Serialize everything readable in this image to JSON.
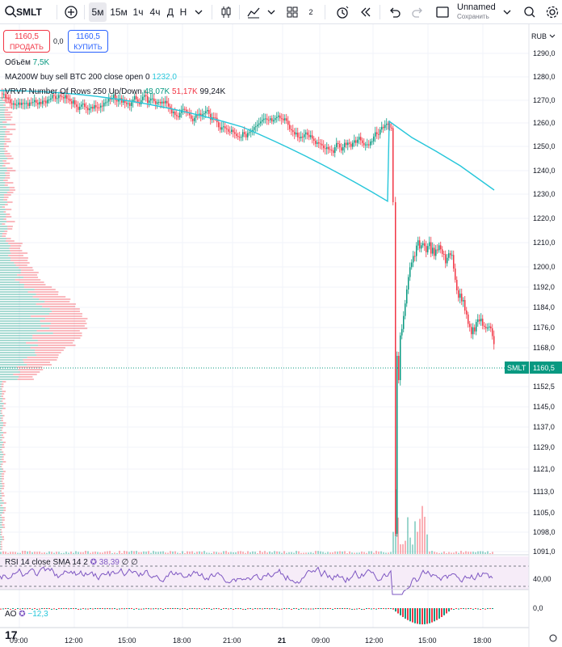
{
  "toolbar": {
    "symbol": "SMLT",
    "intervals": [
      "5м",
      "15м",
      "1ч",
      "4ч",
      "Д",
      "Н"
    ],
    "selected_interval": "5м",
    "layout_count": "2",
    "layout_name": "Unnamed",
    "layout_status": "Сохранить"
  },
  "trade": {
    "sell_price": "1160,5",
    "sell_label": "ПРОДАТЬ",
    "spread": "0,0",
    "buy_price": "1160,5",
    "buy_label": "КУПИТЬ"
  },
  "legends": {
    "volume_label": "Объём",
    "volume_value": "7,5K",
    "ma_label": "MA200W buy sell BTC 200 close open 0",
    "ma_value": "1232,0",
    "vrvp_label": "VRVP Number Of Rows 250 Up/Down",
    "vrvp_up": "48,07K",
    "vrvp_down": "51,17K",
    "vrvp_total": "99,24K",
    "rsi_label": "RSI 14 close SMA 14 2",
    "rsi_value": "38,39",
    "rsi_extra": "∅ ∅",
    "ao_label": "AO",
    "ao_value": "−12,3"
  },
  "price_axis": {
    "currency": "RUB",
    "ticks": [
      "1290,0",
      "1280,0",
      "1270,0",
      "1260,0",
      "1250,0",
      "1240,0",
      "1230,0",
      "1220,0",
      "1210,0",
      "1200,0",
      "1192,0",
      "1184,0",
      "1176,0",
      "1168,0",
      "1160,5",
      "1152,5",
      "1145,0",
      "1137,0",
      "1129,0",
      "1121,0",
      "1113,0",
      "1105,0",
      "1098,0",
      "1091,0"
    ],
    "current_symbol": "SMLT",
    "current_price": "1160,5",
    "rsi_tick": "40,00",
    "ao_tick": "0,0"
  },
  "time_axis": [
    "09:00",
    "12:00",
    "15:00",
    "18:00",
    "21:00",
    "21",
    "09:00",
    "12:00",
    "15:00",
    "18:00"
  ],
  "colors": {
    "up": "#089981",
    "down": "#f23645",
    "ma": "#26c6da",
    "rsi": "#7e57c2"
  }
}
